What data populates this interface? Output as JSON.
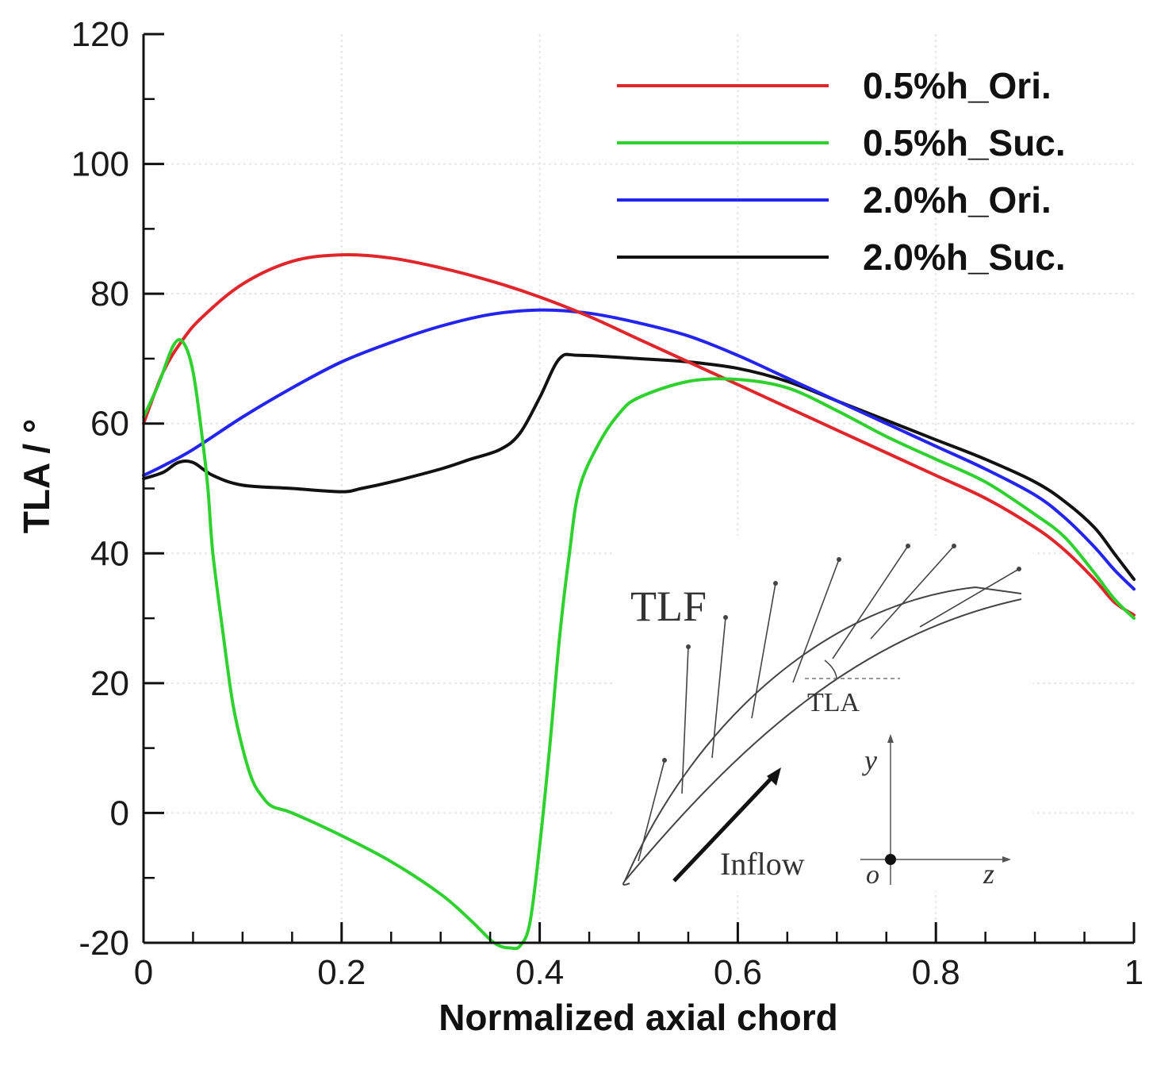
{
  "chart_data": {
    "type": "line",
    "title": "",
    "xlabel": "Normalized axial chord",
    "ylabel": "TLA / °",
    "xlim": [
      0,
      1
    ],
    "ylim": [
      -20,
      120
    ],
    "x_ticks": [
      0,
      0.2,
      0.4,
      0.6,
      0.8,
      1
    ],
    "x_tick_labels": [
      "0",
      "0.2",
      "0.4",
      "0.6",
      "0.8",
      "1"
    ],
    "y_ticks": [
      -20,
      0,
      20,
      40,
      60,
      80,
      100,
      120
    ],
    "y_tick_labels": [
      "-20",
      "0",
      "20",
      "40",
      "60",
      "80",
      "100",
      "120"
    ],
    "grid": true,
    "legend_position": "top-right",
    "series": [
      {
        "name": "0.5%h_Ori.",
        "color": "#e0262a",
        "x": [
          0,
          0.02,
          0.04,
          0.06,
          0.1,
          0.15,
          0.2,
          0.25,
          0.3,
          0.35,
          0.4,
          0.45,
          0.5,
          0.55,
          0.6,
          0.65,
          0.7,
          0.75,
          0.8,
          0.85,
          0.9,
          0.93,
          0.96,
          0.98,
          1.0
        ],
        "y": [
          60,
          68,
          73,
          76.5,
          81.5,
          85,
          86,
          85.5,
          84,
          82,
          79.5,
          76.5,
          73,
          69.5,
          66,
          62.5,
          59,
          55.5,
          52,
          48.5,
          44,
          40.5,
          36,
          32.5,
          30.5
        ]
      },
      {
        "name": "0.5%h_Suc.",
        "color": "#2fd12f",
        "x": [
          0,
          0.015,
          0.03,
          0.04,
          0.05,
          0.06,
          0.065,
          0.07,
          0.08,
          0.09,
          0.1,
          0.11,
          0.12,
          0.13,
          0.15,
          0.2,
          0.25,
          0.3,
          0.33,
          0.35,
          0.36,
          0.37,
          0.38,
          0.39,
          0.4,
          0.41,
          0.42,
          0.43,
          0.44,
          0.46,
          0.48,
          0.5,
          0.55,
          0.6,
          0.65,
          0.7,
          0.75,
          0.8,
          0.85,
          0.9,
          0.93,
          0.96,
          0.98,
          1.0
        ],
        "y": [
          61,
          66,
          72,
          72.5,
          68,
          57,
          50,
          40,
          28,
          17,
          10,
          5,
          2.5,
          1,
          0,
          -3.5,
          -7.5,
          -12.5,
          -16.5,
          -19.5,
          -20.5,
          -20.8,
          -20.5,
          -17,
          -5,
          10,
          27,
          40,
          50,
          57,
          61.5,
          64,
          66.5,
          66.8,
          65.5,
          62,
          58,
          54.5,
          51,
          46,
          42.5,
          37,
          33,
          30
        ]
      },
      {
        "name": "2.0%h_Ori.",
        "color": "#2424f0",
        "x": [
          0,
          0.02,
          0.05,
          0.1,
          0.15,
          0.2,
          0.25,
          0.3,
          0.35,
          0.4,
          0.45,
          0.5,
          0.55,
          0.6,
          0.65,
          0.7,
          0.75,
          0.8,
          0.85,
          0.9,
          0.93,
          0.96,
          0.98,
          1.0
        ],
        "y": [
          52,
          53.5,
          56,
          61,
          65.5,
          69.5,
          72.5,
          75,
          76.8,
          77.5,
          77,
          75.5,
          73.5,
          70.5,
          67,
          63.5,
          60,
          56.5,
          53,
          49,
          45.5,
          41,
          37.5,
          34.5
        ]
      },
      {
        "name": "2.0%h_Suc.",
        "color": "#111111",
        "x": [
          0,
          0.02,
          0.035,
          0.05,
          0.07,
          0.1,
          0.15,
          0.2,
          0.22,
          0.25,
          0.3,
          0.33,
          0.36,
          0.38,
          0.4,
          0.42,
          0.44,
          0.5,
          0.55,
          0.6,
          0.65,
          0.7,
          0.75,
          0.8,
          0.85,
          0.9,
          0.93,
          0.96,
          0.98,
          1.0
        ],
        "y": [
          51.5,
          52.5,
          54,
          54,
          52,
          50.5,
          50,
          49.5,
          50,
          51,
          53,
          54.5,
          56,
          58.5,
          64,
          70,
          70.5,
          70,
          69.5,
          68.5,
          66.5,
          63.5,
          60.5,
          57.5,
          54.5,
          51,
          48,
          44,
          40,
          36
        ]
      }
    ],
    "inset": {
      "title": "TLF",
      "angle_label": "TLA",
      "inflow_label": "Inflow",
      "axis_y_label": "y",
      "axis_z_label": "z",
      "origin_label": "o"
    }
  }
}
